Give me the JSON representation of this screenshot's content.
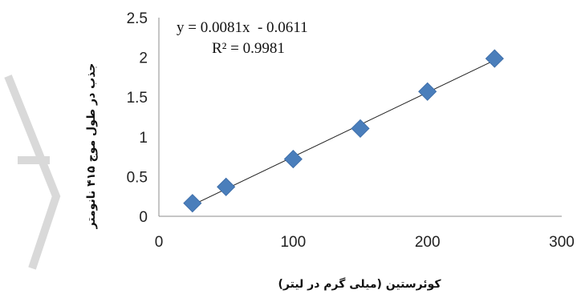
{
  "chart_data": {
    "type": "scatter",
    "x": [
      25,
      50,
      100,
      150,
      200,
      250
    ],
    "y": [
      0.165,
      0.37,
      0.72,
      1.105,
      1.57,
      1.985
    ],
    "xlim": [
      0,
      300
    ],
    "ylim": [
      0,
      2.5
    ],
    "xticks": [
      "0",
      "100",
      "200",
      "300"
    ],
    "yticks": [
      "0",
      "0.5",
      "1",
      "1.5",
      "2",
      "2.5"
    ],
    "xlabel": "کوئرستین (میلی گرم در لیتر)",
    "ylabel": "جذب در طول موج ۴۱۵ نانومتر",
    "trendline": {
      "slope": 0.0081,
      "intercept": -0.0611,
      "equation": "y = 0.0081x  - 0.0611",
      "r_squared": "R² = 0.9981"
    },
    "grid": false,
    "legend": "none",
    "marker": "diamond",
    "marker_color": "#4a7ebb"
  }
}
